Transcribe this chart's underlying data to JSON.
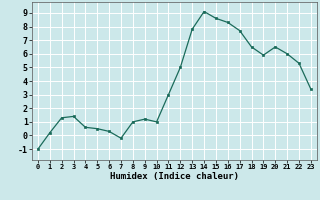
{
  "x": [
    0,
    1,
    2,
    3,
    4,
    5,
    6,
    7,
    8,
    9,
    10,
    11,
    12,
    13,
    14,
    15,
    16,
    17,
    18,
    19,
    20,
    21,
    22,
    23
  ],
  "y": [
    -1,
    0.2,
    1.3,
    1.4,
    0.6,
    0.5,
    0.3,
    -0.2,
    1.0,
    1.2,
    1.0,
    3.0,
    5.0,
    7.8,
    9.1,
    8.6,
    8.3,
    7.7,
    6.5,
    5.9,
    6.5,
    6.0,
    5.3,
    3.4
  ],
  "xlabel": "Humidex (Indice chaleur)",
  "line_color": "#1a6b5a",
  "bg_color": "#cce8ea",
  "grid_color": "#ffffff",
  "ylim": [
    -1.8,
    9.8
  ],
  "xlim": [
    -0.5,
    23.5
  ],
  "yticks": [
    -1,
    0,
    1,
    2,
    3,
    4,
    5,
    6,
    7,
    8,
    9
  ],
  "xticks": [
    0,
    1,
    2,
    3,
    4,
    5,
    6,
    7,
    8,
    9,
    10,
    11,
    12,
    13,
    14,
    15,
    16,
    17,
    18,
    19,
    20,
    21,
    22,
    23
  ]
}
